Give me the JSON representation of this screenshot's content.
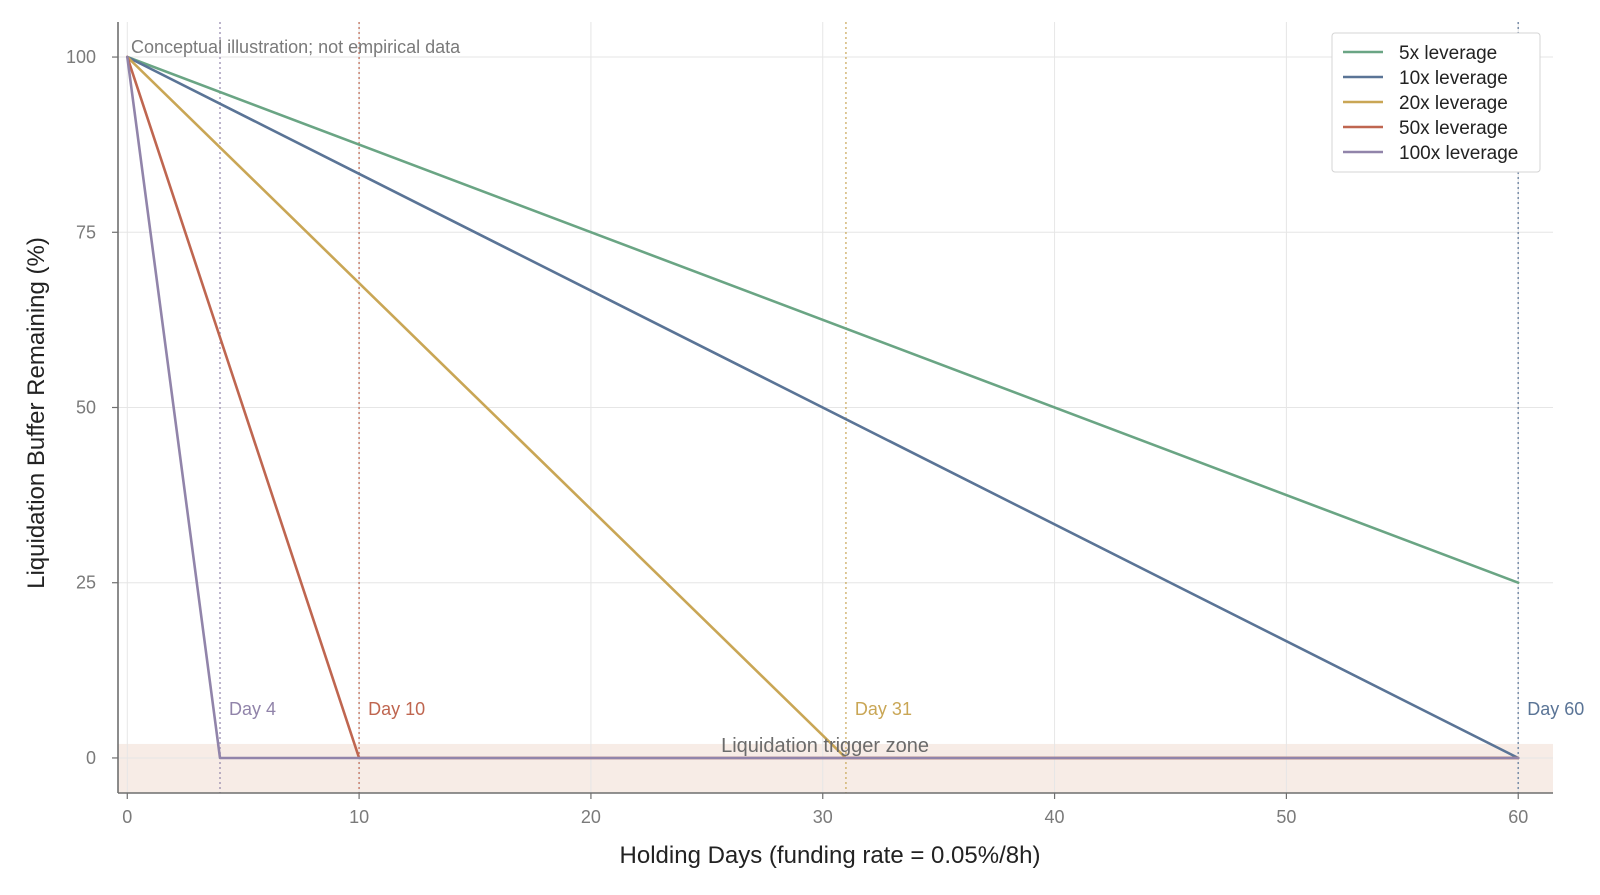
{
  "chart_data": {
    "type": "line",
    "title": "",
    "xlabel": "Holding Days (funding rate = 0.05%/8h)",
    "ylabel": "Liquidation Buffer Remaining (%)",
    "xlim": [
      -0.4,
      61.5
    ],
    "ylim": [
      -5,
      105
    ],
    "xticks": [
      0,
      10,
      20,
      30,
      40,
      50,
      60
    ],
    "yticks": [
      0,
      25,
      50,
      75,
      100
    ],
    "grid": true,
    "legend_position": "top-right",
    "annotation": "Conceptual illustration; not empirical data",
    "trigger_zone": {
      "label": "Liquidation trigger zone",
      "y_range": [
        -5,
        2
      ],
      "color": "#f7ece6"
    },
    "series": [
      {
        "name": "5x leverage",
        "color": "#6aa584",
        "x": [
          0,
          60
        ],
        "y": [
          100,
          25
        ]
      },
      {
        "name": "10x leverage",
        "color": "#5a7496",
        "x": [
          0,
          60
        ],
        "y": [
          100,
          0
        ]
      },
      {
        "name": "20x leverage",
        "color": "#c9a655",
        "x": [
          0,
          31,
          60
        ],
        "y": [
          100,
          0,
          0
        ]
      },
      {
        "name": "50x leverage",
        "color": "#bf6650",
        "x": [
          0,
          10,
          60
        ],
        "y": [
          100,
          0,
          0
        ]
      },
      {
        "name": "100x leverage",
        "color": "#9184aa",
        "x": [
          0,
          4,
          60
        ],
        "y": [
          100,
          0,
          0
        ]
      }
    ],
    "liquidation_markers": [
      {
        "day": 4,
        "label": "Day 4",
        "color": "#9184aa"
      },
      {
        "day": 10,
        "label": "Day 10",
        "color": "#bf6650"
      },
      {
        "day": 31,
        "label": "Day 31",
        "color": "#c9a655"
      },
      {
        "day": 60,
        "label": "Day 60",
        "color": "#5a7496"
      }
    ]
  }
}
